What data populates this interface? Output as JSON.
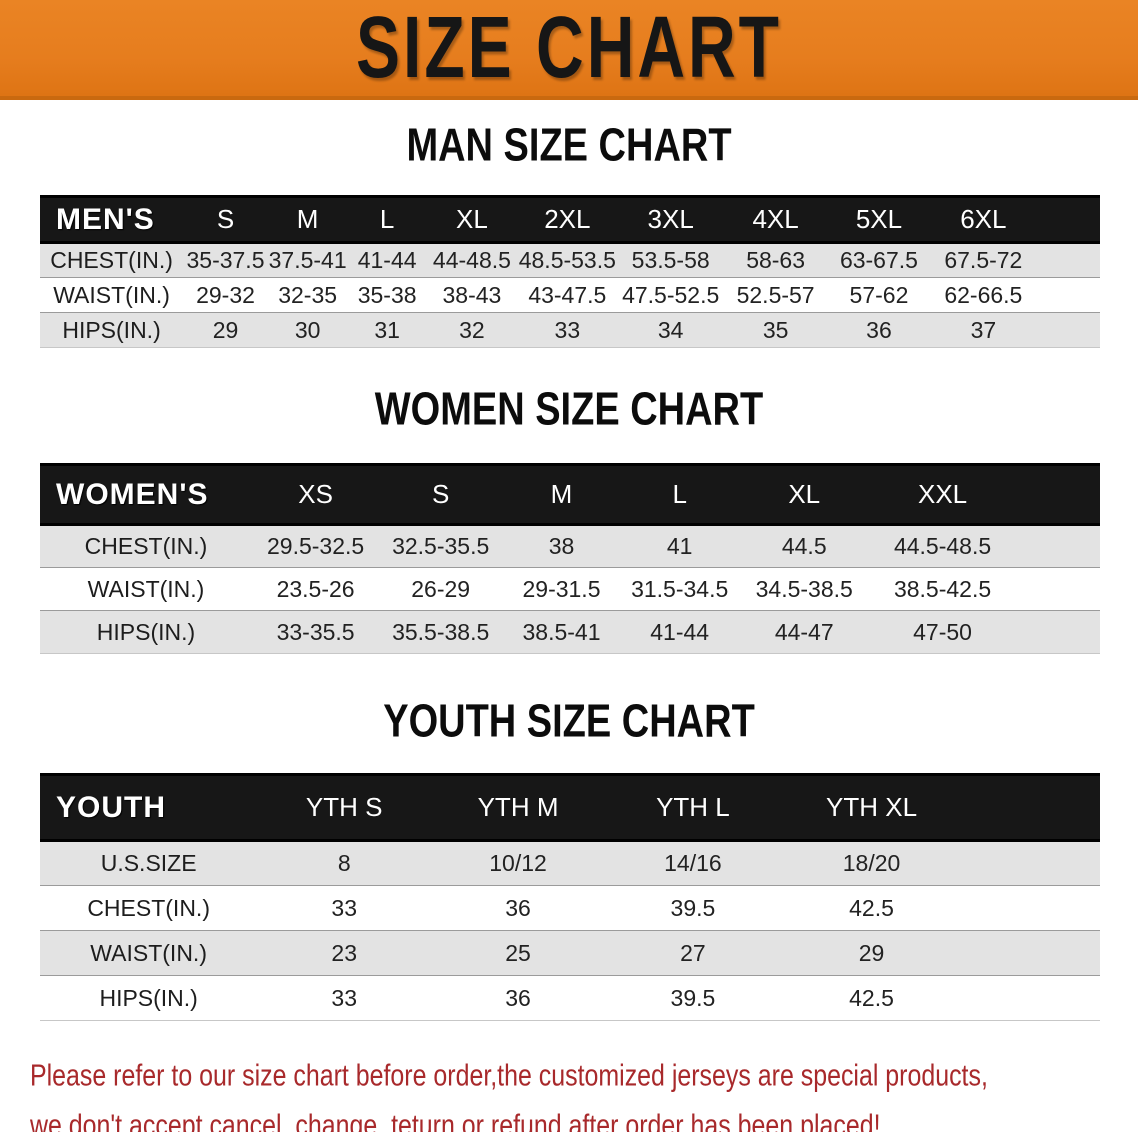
{
  "banner": {
    "title": "SIZE CHART"
  },
  "colors": {
    "banner_bg": "#E67D1E",
    "banner_text": "#161616",
    "header_bg": "#171717",
    "header_text": "#FFFFFF",
    "stripe_gray": "#E3E3E3",
    "disclaimer_red": "#A8292B"
  },
  "sections": [
    {
      "heading": "MAN SIZE CHART",
      "table": {
        "header_label": "MEN'S",
        "columns": [
          "S",
          "M",
          "L",
          "XL",
          "2XL",
          "3XL",
          "4XL",
          "5XL",
          "6XL"
        ],
        "rows": [
          {
            "label": "CHEST(IN.)",
            "values": [
              "35-37.5",
              "37.5-41",
              "41-44",
              "44-48.5",
              "48.5-53.5",
              "53.5-58",
              "58-63",
              "63-67.5",
              "67.5-72"
            ]
          },
          {
            "label": "WAIST(IN.)",
            "values": [
              "29-32",
              "32-35",
              "35-38",
              "38-43",
              "43-47.5",
              "47.5-52.5",
              "52.5-57",
              "57-62",
              "62-66.5"
            ]
          },
          {
            "label": "HIPS(IN.)",
            "values": [
              "29",
              "30",
              "31",
              "32",
              "33",
              "34",
              "35",
              "36",
              "37"
            ]
          }
        ]
      }
    },
    {
      "heading": "WOMEN SIZE CHART",
      "table": {
        "header_label": "WOMEN'S",
        "columns": [
          "XS",
          "S",
          "M",
          "L",
          "XL",
          "XXL"
        ],
        "rows": [
          {
            "label": "CHEST(IN.)",
            "values": [
              "29.5-32.5",
              "32.5-35.5",
              "38",
              "41",
              "44.5",
              "44.5-48.5"
            ]
          },
          {
            "label": "WAIST(IN.)",
            "values": [
              "23.5-26",
              "26-29",
              "29-31.5",
              "31.5-34.5",
              "34.5-38.5",
              "38.5-42.5"
            ]
          },
          {
            "label": "HIPS(IN.)",
            "values": [
              "33-35.5",
              "35.5-38.5",
              "38.5-41",
              "41-44",
              "44-47",
              "47-50"
            ]
          }
        ]
      }
    },
    {
      "heading": "YOUTH SIZE CHART",
      "table": {
        "header_label": "YOUTH",
        "columns": [
          "YTH S",
          "YTH M",
          "YTH L",
          "YTH XL"
        ],
        "rows": [
          {
            "label": "U.S.SIZE",
            "values": [
              "8",
              "10/12",
              "14/16",
              "18/20"
            ]
          },
          {
            "label": "CHEST(IN.)",
            "values": [
              "33",
              "36",
              "39.5",
              "42.5"
            ]
          },
          {
            "label": "WAIST(IN.)",
            "values": [
              "23",
              "25",
              "27",
              "29"
            ]
          },
          {
            "label": "HIPS(IN.)",
            "values": [
              "33",
              "36",
              "39.5",
              "42.5"
            ]
          }
        ]
      }
    }
  ],
  "disclaimer": {
    "line1": "Please refer to our size chart before order,the customized jerseys are special products,",
    "line2": "we don't accept cancel, change, teturn or refund after order has been placed!"
  }
}
